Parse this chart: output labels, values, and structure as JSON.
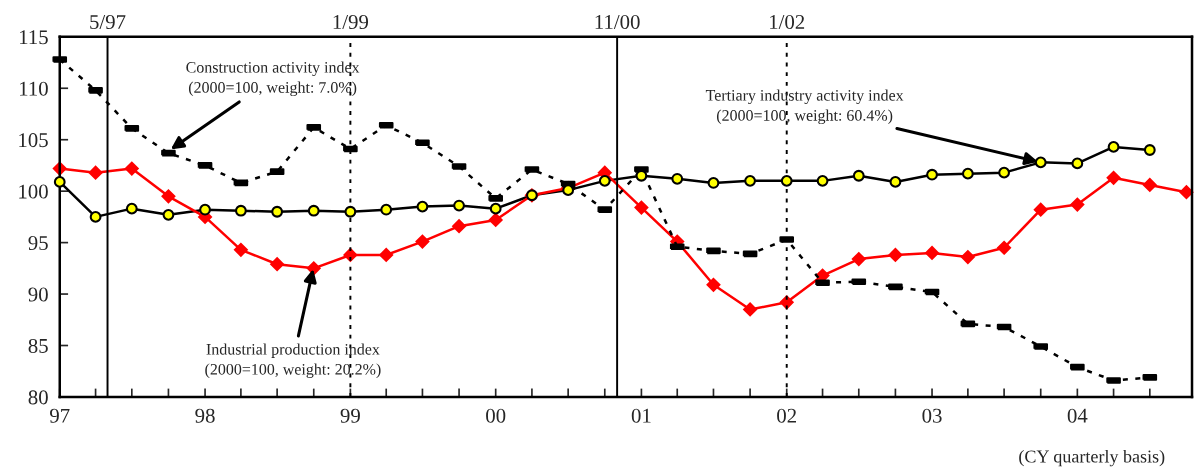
{
  "chart_data": {
    "type": "line",
    "x": [
      "1997-01",
      "1997-04",
      "1997-07",
      "1997-10",
      "1998-01",
      "1998-04",
      "1998-07",
      "1998-10",
      "1999-01",
      "1999-04",
      "1999-07",
      "1999-10",
      "2000-01",
      "2000-04",
      "2000-07",
      "2000-10",
      "2001-01",
      "2001-04",
      "2001-07",
      "2001-10",
      "2002-01",
      "2002-04",
      "2002-07",
      "2002-10",
      "2003-01",
      "2003-04",
      "2003-07",
      "2003-10",
      "2004-01",
      "2004-04",
      "2004-07",
      "2004-10"
    ],
    "series": [
      {
        "color": "#000000",
        "colors": [
          "#ffff00",
          "#ffff00",
          "#ffff00",
          "#ffff00",
          "#ffff00",
          "#ffff00",
          "#ffff00",
          "#ffff00",
          "#ffff00",
          "#ffff00",
          "#ffff00",
          "#ffff00",
          "#ffff00",
          "#ffff00",
          "#ffff00",
          "#ffff00",
          "#ffff00",
          "#ffff00",
          "#ffff00",
          "#ffff00",
          "#ffff00",
          "#ffff00",
          "#ffff00",
          "#ffff00",
          "#ffff00",
          "#ffff00",
          "#ffff00",
          "#ffff00",
          "#ffff00",
          "#ffff00",
          "#ffff00",
          "#ffff00"
        ],
        "marker": "circle",
        "line_style": "solid",
        "values": [
          100.9,
          97.5,
          98.3,
          97.7,
          98.2,
          98.1,
          98.0,
          98.1,
          98.0,
          98.2,
          98.5,
          98.6,
          98.3,
          99.6,
          100.1,
          101.0,
          101.5,
          101.2,
          100.8,
          101.0,
          101.0,
          101.0,
          101.5,
          100.9,
          101.6,
          101.7,
          101.8,
          102.8,
          102.7,
          104.3,
          104.0,
          null
        ]
      },
      {
        "color": "#ff0000",
        "marker": "diamond",
        "line_style": "solid",
        "values": [
          102.2,
          101.8,
          102.2,
          99.5,
          97.5,
          94.3,
          92.9,
          92.5,
          93.8,
          93.8,
          95.1,
          96.6,
          97.2,
          99.6,
          100.3,
          101.8,
          98.4,
          95.1,
          90.9,
          88.5,
          89.2,
          91.8,
          93.4,
          93.8,
          94.0,
          93.6,
          94.5,
          98.2,
          98.7,
          101.3,
          100.6,
          99.9
        ]
      },
      {
        "color": "#000000",
        "marker": "square",
        "line_style": "dotted",
        "values": [
          112.8,
          109.8,
          106.1,
          103.7,
          102.5,
          100.8,
          101.9,
          106.2,
          104.1,
          106.4,
          104.7,
          102.4,
          99.3,
          102.1,
          100.7,
          98.2,
          102.1,
          94.6,
          94.2,
          93.9,
          95.3,
          91.1,
          91.2,
          90.7,
          90.2,
          87.1,
          86.8,
          84.9,
          82.9,
          81.6,
          81.9,
          null
        ]
      }
    ],
    "xlim": [
      "1997-01",
      "2004-10-15"
    ],
    "xticks": [
      {
        "value": "1997-01",
        "label": "97"
      },
      {
        "value": "1997-04",
        "label": null
      },
      {
        "value": "1997-07",
        "label": null
      },
      {
        "value": "1997-10",
        "label": null
      },
      {
        "value": "1998-01",
        "label": "98"
      },
      {
        "value": "1998-04",
        "label": null
      },
      {
        "value": "1998-07",
        "label": null
      },
      {
        "value": "1998-10",
        "label": null
      },
      {
        "value": "1999-01",
        "label": "99"
      },
      {
        "value": "1999-04",
        "label": null
      },
      {
        "value": "1999-07",
        "label": null
      },
      {
        "value": "1999-10",
        "label": null
      },
      {
        "value": "2000-01",
        "label": "00"
      },
      {
        "value": "2000-04",
        "label": null
      },
      {
        "value": "2000-07",
        "label": null
      },
      {
        "value": "2000-10",
        "label": null
      },
      {
        "value": "2001-01",
        "label": "01"
      },
      {
        "value": "2001-04",
        "label": null
      },
      {
        "value": "2001-07",
        "label": null
      },
      {
        "value": "2001-10",
        "label": null
      },
      {
        "value": "2002-01",
        "label": "02"
      },
      {
        "value": "2002-04",
        "label": null
      },
      {
        "value": "2002-07",
        "label": null
      },
      {
        "value": "2002-10",
        "label": null
      },
      {
        "value": "2003-01",
        "label": "03"
      },
      {
        "value": "2003-04",
        "label": null
      },
      {
        "value": "2003-07",
        "label": null
      },
      {
        "value": "2003-10",
        "label": null
      },
      {
        "value": "2004-01",
        "label": "04"
      },
      {
        "value": "2004-04",
        "label": null
      },
      {
        "value": "2004-07",
        "label": null
      }
    ],
    "ylim": [
      80,
      115
    ],
    "yticks": [
      80,
      85,
      90,
      95,
      100,
      105,
      110,
      115
    ],
    "grid": false,
    "ref_lines": [
      {
        "axis": "x",
        "value": "1997-05",
        "label": "5/97",
        "line_style": "solid",
        "color": "#000000"
      },
      {
        "axis": "x",
        "value": "1999-01",
        "label": "1/99",
        "line_style": "dotted",
        "color": "#000000"
      },
      {
        "axis": "x",
        "value": "2000-11",
        "label": "11/00",
        "line_style": "solid",
        "color": "#000000"
      },
      {
        "axis": "x",
        "value": "2002-01",
        "label": "1/02",
        "line_style": "dotted",
        "color": "#000000"
      }
    ],
    "annotations": [
      {
        "text": "Construction activity index\n(2000=100, weight: 7.0%)",
        "x": "1997-10",
        "y": 103.9
      },
      {
        "text": "Industrial production index\n(2000=100, weight: 20.2%)",
        "x": "1998-10",
        "y": 92.7
      },
      {
        "text": "Tertiary industry activity index\n(2000=100, weight: 60.4%)",
        "x": "2003-10",
        "y": 102.8
      },
      "(CY quarterly basis)"
    ]
  }
}
